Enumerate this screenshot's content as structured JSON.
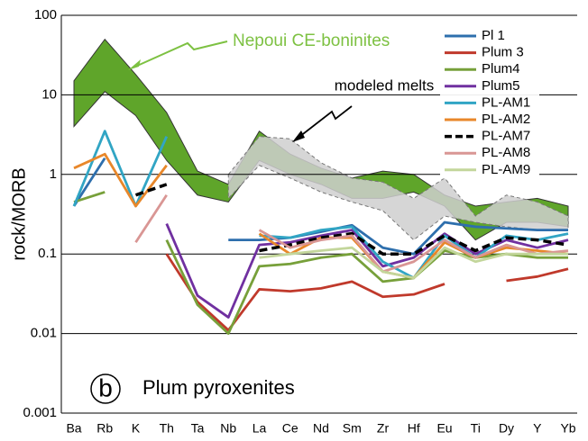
{
  "chart_data": {
    "type": "line",
    "y_label": "rock/MORB",
    "panel_label": "b",
    "subtitle": "Plum pyroxenites",
    "log_y": true,
    "grid": true,
    "ylim": [
      0.001,
      100
    ],
    "yticks": [
      0.001,
      0.01,
      0.1,
      1,
      10,
      100
    ],
    "categories": [
      "Ba",
      "Rb",
      "K",
      "Th",
      "Ta",
      "Nb",
      "La",
      "Ce",
      "Nd",
      "Sm",
      "Zr",
      "Hf",
      "Eu",
      "Ti",
      "Dy",
      "Y",
      "Yb"
    ],
    "bands": [
      {
        "name": "Nepoui CE-boninites",
        "color": "#5fa52a",
        "upper": [
          15,
          50,
          18,
          6,
          1.1,
          0.75,
          3.5,
          1.8,
          1.2,
          0.9,
          1.1,
          1.0,
          0.55,
          0.4,
          0.45,
          0.5,
          0.4
        ],
        "lower": [
          4,
          11,
          5.5,
          1.5,
          0.55,
          0.45,
          1.5,
          1.0,
          0.75,
          0.5,
          0.5,
          0.6,
          0.4,
          0.15,
          0.25,
          0.25,
          0.22
        ]
      },
      {
        "name": "modeled melts",
        "color": "#cfcfcf",
        "upper": [
          null,
          null,
          null,
          null,
          null,
          1.0,
          3.0,
          2.8,
          1.4,
          0.9,
          0.8,
          0.5,
          0.9,
          0.3,
          0.55,
          0.45,
          0.3
        ],
        "lower": [
          null,
          null,
          null,
          null,
          null,
          0.5,
          1.3,
          0.9,
          0.6,
          0.45,
          0.35,
          0.15,
          0.3,
          0.25,
          0.22,
          0.2,
          0.2
        ]
      }
    ],
    "series": [
      {
        "name": "Pl 1",
        "color": "#2e6fad",
        "values": [
          0.4,
          1.6,
          null,
          null,
          null,
          0.15,
          0.15,
          0.16,
          0.19,
          0.23,
          0.12,
          0.1,
          0.25,
          0.22,
          0.21,
          0.2,
          0.2
        ]
      },
      {
        "name": "Plum 3",
        "color": "#c0392b",
        "values": [
          null,
          null,
          null,
          0.1,
          0.025,
          0.011,
          0.036,
          0.034,
          0.037,
          0.045,
          0.029,
          0.031,
          0.042,
          null,
          0.046,
          0.052,
          0.065
        ]
      },
      {
        "name": "Plum4",
        "color": "#77a03a",
        "values": [
          0.45,
          0.6,
          null,
          0.15,
          0.023,
          0.01,
          0.07,
          0.075,
          0.09,
          0.1,
          0.045,
          0.05,
          0.11,
          0.09,
          0.1,
          0.09,
          0.09
        ]
      },
      {
        "name": "Plum5",
        "color": "#7030a0",
        "values": [
          null,
          null,
          null,
          0.24,
          0.03,
          0.016,
          0.13,
          0.14,
          0.17,
          0.2,
          0.07,
          0.09,
          0.18,
          0.1,
          0.15,
          0.12,
          0.15
        ]
      },
      {
        "name": "PL-AM1",
        "color": "#31a5c4",
        "values": [
          0.4,
          3.5,
          0.4,
          3,
          null,
          null,
          0.17,
          0.16,
          0.2,
          0.22,
          0.08,
          0.05,
          0.17,
          0.09,
          0.17,
          0.15,
          0.18
        ]
      },
      {
        "name": "PL-AM2",
        "color": "#e8872a",
        "values": [
          1.2,
          1.8,
          0.4,
          1.3,
          null,
          null,
          0.18,
          0.1,
          0.16,
          0.16,
          0.06,
          0.05,
          0.14,
          0.09,
          0.12,
          0.11,
          0.1
        ]
      },
      {
        "name": "PL-AM7",
        "color": "#000000",
        "dash": true,
        "values": [
          null,
          null,
          0.55,
          0.75,
          null,
          null,
          0.11,
          0.13,
          0.16,
          0.18,
          0.1,
          0.1,
          0.17,
          0.11,
          0.16,
          0.15,
          0.13
        ]
      },
      {
        "name": "PL-AM8",
        "color": "#d99694",
        "values": [
          null,
          null,
          0.14,
          0.55,
          null,
          null,
          0.2,
          0.12,
          0.15,
          0.17,
          0.06,
          0.08,
          0.15,
          0.09,
          0.13,
          0.1,
          0.11
        ]
      },
      {
        "name": "PL-AM9",
        "color": "#c3d69b",
        "values": [
          null,
          null,
          null,
          null,
          null,
          null,
          0.09,
          0.1,
          0.11,
          0.12,
          0.06,
          0.05,
          0.12,
          0.08,
          0.1,
          0.1,
          0.1
        ]
      }
    ]
  }
}
